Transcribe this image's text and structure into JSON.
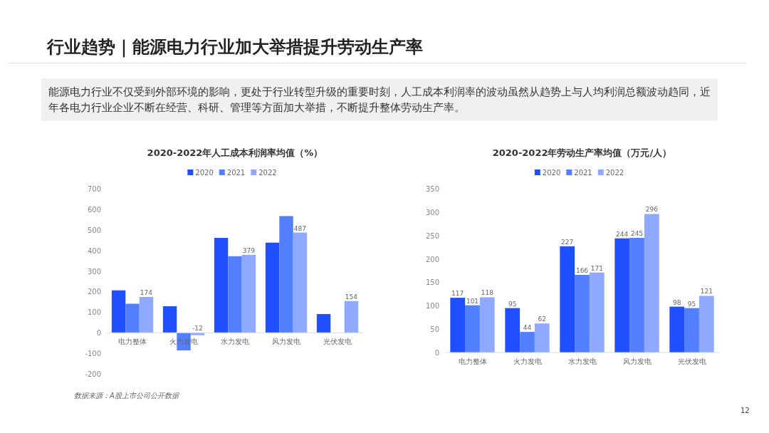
{
  "chart_data": [
    {
      "type": "other",
      "title": "行业趋势｜能源电力行业加大举措提升劳动生产率",
      "annotations": [
        "能源电力行业不仅受到外部环境的影响，更处于行业转型升级的重要时刻，人工成本利润率的波动虽然从趋势上与人均利润总额波动趋同，近年各电力行业企业不断在经营、科研、管理等方面加大举措，不断提升整体劳动生产率。",
        "数据来源：A股上市公司公开数据",
        "12"
      ]
    },
    {
      "type": "bar",
      "title": "2020-2022年人工成本利润率均值（%）",
      "categories": [
        "电力整体",
        "火力发电",
        "水力发电",
        "风力发电",
        "光伏发电"
      ],
      "ylim": [
        -200,
        700
      ],
      "yticks": [
        -200,
        -100,
        0,
        100,
        200,
        300,
        400,
        500,
        600,
        700
      ],
      "legend": "top",
      "series": [
        {
          "name": "2020",
          "color": "#1f4fff",
          "values": [
            206,
            129,
            461,
            438,
            91
          ],
          "value_labels": [
            null,
            null,
            null,
            null,
            null
          ]
        },
        {
          "name": "2021",
          "color": "#527fff",
          "values": [
            141,
            -86,
            372,
            567,
            null
          ],
          "value_labels": [
            null,
            null,
            null,
            null,
            null
          ]
        },
        {
          "name": "2022",
          "color": "#8fa9ff",
          "values": [
            174,
            -12,
            379,
            487,
            154
          ],
          "value_labels": [
            "174",
            "-12",
            "379",
            "487",
            "154"
          ]
        }
      ]
    },
    {
      "type": "bar",
      "title": "2020-2022年劳动生产率均值（万元/人）",
      "categories": [
        "电力整体",
        "火力发电",
        "水力发电",
        "风力发电",
        "光伏发电"
      ],
      "ylim": [
        0,
        350
      ],
      "yticks": [
        0,
        50,
        100,
        150,
        200,
        250,
        300,
        350
      ],
      "legend": "top",
      "data_labels": true,
      "series": [
        {
          "name": "2020",
          "color": "#1f4fff",
          "values": [
            117,
            95,
            227,
            244,
            98
          ]
        },
        {
          "name": "2021",
          "color": "#527fff",
          "values": [
            101,
            44,
            166,
            245,
            95
          ]
        },
        {
          "name": "2022",
          "color": "#8fa9ff",
          "values": [
            118,
            62,
            171,
            296,
            121
          ]
        }
      ]
    }
  ]
}
